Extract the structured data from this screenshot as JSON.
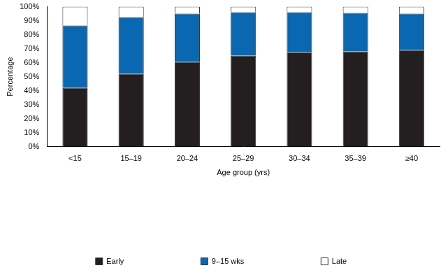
{
  "chart_data": {
    "type": "bar",
    "stacked": true,
    "x_label": "Age group (yrs)",
    "y_label": "Percentage",
    "categories": [
      "<15",
      "15–19",
      "20–24",
      "25–29",
      "30–34",
      "35–39",
      "≥40"
    ],
    "series": [
      {
        "name": "Early",
        "color": "#231f20",
        "values": [
          42,
          52,
          60.5,
          65,
          67.5,
          68,
          69
        ]
      },
      {
        "name": "9–15 wks",
        "color": "#0a67b2",
        "values": [
          44.5,
          40.5,
          34.5,
          31,
          28.5,
          27.5,
          26
        ]
      },
      {
        "name": "Late",
        "color": "#ffffff",
        "values": [
          13.5,
          7.5,
          5,
          4,
          4,
          4.5,
          5
        ]
      }
    ],
    "ylim": [
      0,
      100
    ],
    "yticks": [
      {
        "value": 0,
        "label": "0%"
      },
      {
        "value": 10,
        "label": "10%"
      },
      {
        "value": 20,
        "label": "20%"
      },
      {
        "value": 30,
        "label": "30%"
      },
      {
        "value": 40,
        "label": "40%"
      },
      {
        "value": 50,
        "label": "50%"
      },
      {
        "value": 60,
        "label": "60%"
      },
      {
        "value": 70,
        "label": "70%"
      },
      {
        "value": 80,
        "label": "80%"
      },
      {
        "value": 90,
        "label": "90%"
      },
      {
        "value": 100,
        "label": "100%"
      }
    ],
    "grid": false,
    "legend": "bottom"
  }
}
